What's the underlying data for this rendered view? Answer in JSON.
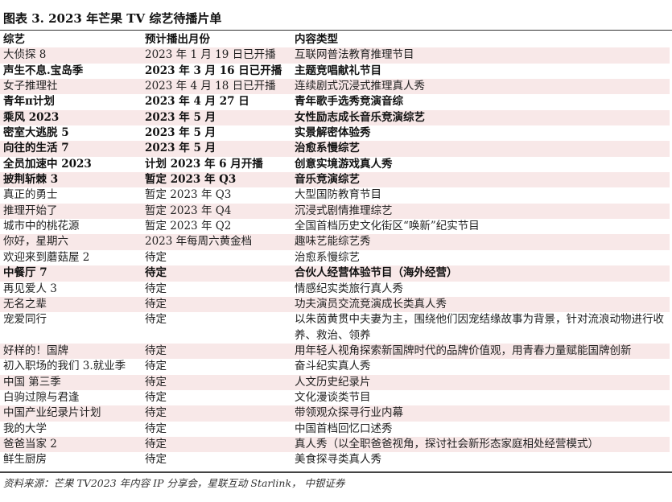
{
  "title": "图表 3. 2023 年芒果 TV 综艺待播片单",
  "headers": [
    "综艺",
    "预计播出月份",
    "内容类型"
  ],
  "rows": [
    {
      "name": "大侦探 8",
      "date": "2023 年 1 月 19 日已开播",
      "type": "互联网普法教育推理节目",
      "bold": false
    },
    {
      "name": "声生不息.宝岛季",
      "date": "2023 年 3 月 16 日已开播",
      "type": "主题竞唱献礼节目",
      "bold": true
    },
    {
      "name": "女子推理社",
      "date": "2023 年 4 月 18 日已开播",
      "type": "连续剧式沉浸式推理真人秀",
      "bold": false
    },
    {
      "name": "青年π计划",
      "date": "2023 年 4 月 27 日",
      "type": "青年歌手选秀竞演音综",
      "bold": true
    },
    {
      "name": "乘风 2023",
      "date": "2023 年 5 月",
      "type": "女性励志成长音乐竞演综艺",
      "bold": true
    },
    {
      "name": "密室大逃脱 5",
      "date": "2023 年 5 月",
      "type": "实景解密体验秀",
      "bold": true
    },
    {
      "name": "向往的生活 7",
      "date": "2023 年 5 月",
      "type": "治愈系慢综艺",
      "bold": true
    },
    {
      "name": "全员加速中 2023",
      "date": "计划 2023 年 6 月开播",
      "type": "创意实境游戏真人秀",
      "bold": true
    },
    {
      "name": "披荆斩棘 3",
      "date": "暂定 2023 年 Q3",
      "type": "音乐竞演综艺",
      "bold": true
    },
    {
      "name": "真正的勇士",
      "date": "暂定 2023 年 Q3",
      "type": "大型国防教育节目",
      "bold": false
    },
    {
      "name": "推理开始了",
      "date": "暂定 2023 年 Q4",
      "type": "沉浸式剧情推理综艺",
      "bold": false
    },
    {
      "name": "城市中的桃花源",
      "date": "暂定 2023 年 Q2",
      "type": "全国首档历史文化街区“唤新”纪实节目",
      "bold": false
    },
    {
      "name": "你好，星期六",
      "date": "2023 年每周六黄金档",
      "type": "趣味艺能综艺秀",
      "bold": false
    },
    {
      "name": "欢迎来到蘑菇屋 2",
      "date": "待定",
      "type": "治愈系慢综艺",
      "bold": false
    },
    {
      "name": "中餐厅 7",
      "date": "待定",
      "type": "合伙人经营体验节目（海外经营）",
      "bold": true
    },
    {
      "name": "再见爱人 3",
      "date": "待定",
      "type": "情感纪实类旅行真人秀",
      "bold": false
    },
    {
      "name": "无名之辈",
      "date": "待定",
      "type": "功夫演员交流竞演成长类真人秀",
      "bold": false
    },
    {
      "name": "宠爱同行",
      "date": "待定",
      "type": "以朱茵黄贯中夫妻为主，围绕他们因宠结缘故事为背景，针对流浪动物进行收养、救治、领养",
      "bold": false
    },
    {
      "name": "好样的！国牌",
      "date": "待定",
      "type": "用年轻人视角探索新国牌时代的品牌价值观，用青春力量赋能国牌创新",
      "bold": false
    },
    {
      "name": "初入职场的我们 3.就业季",
      "date": "待定",
      "type": "奋斗纪实真人秀",
      "bold": false
    },
    {
      "name": "中国 第三季",
      "date": "待定",
      "type": "人文历史纪录片",
      "bold": false
    },
    {
      "name": "白驹过隙与君逢",
      "date": "待定",
      "type": "文化漫谈类节目",
      "bold": false
    },
    {
      "name": "中国产业纪录片计划",
      "date": "待定",
      "type": "带领观众探寻行业内幕",
      "bold": false
    },
    {
      "name": "我的大学",
      "date": "待定",
      "type": "中国首档回忆口述秀",
      "bold": false
    },
    {
      "name": "爸爸当家 2",
      "date": "待定",
      "type": "真人秀（以全职爸爸视角，探讨社会新形态家庭相处经营模式）",
      "bold": false
    },
    {
      "name": "鲜生厨房",
      "date": "待定",
      "type": "美食探寻类真人秀",
      "bold": false
    }
  ],
  "source": "资料来源：芒果 TV2023 年内容 IP 分享会，星联互动 Starlink， 中银证券",
  "colors": {
    "row_shade": "#f8e8e8"
  }
}
